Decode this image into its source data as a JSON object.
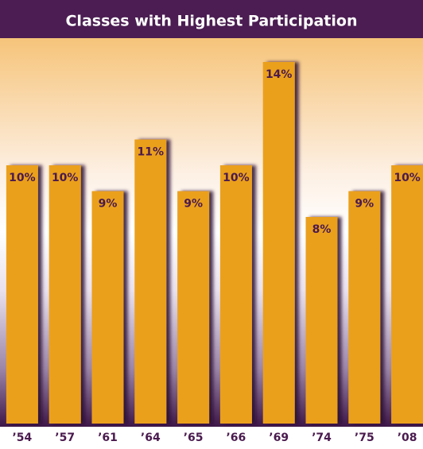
{
  "chart_data": {
    "type": "bar",
    "title": "Classes with Highest Participation",
    "categories": [
      "’54",
      "’57",
      "’61",
      "’64",
      "’65",
      "’66",
      "’69",
      "’74",
      "’75",
      "’08"
    ],
    "values": [
      10,
      10,
      9,
      11,
      9,
      10,
      14,
      8,
      9,
      10
    ],
    "value_labels": [
      "10%",
      "10%",
      "9%",
      "11%",
      "9%",
      "10%",
      "14%",
      "8%",
      "9%",
      "10%"
    ],
    "color": "#eba01e",
    "ylim": [
      0,
      14
    ]
  }
}
